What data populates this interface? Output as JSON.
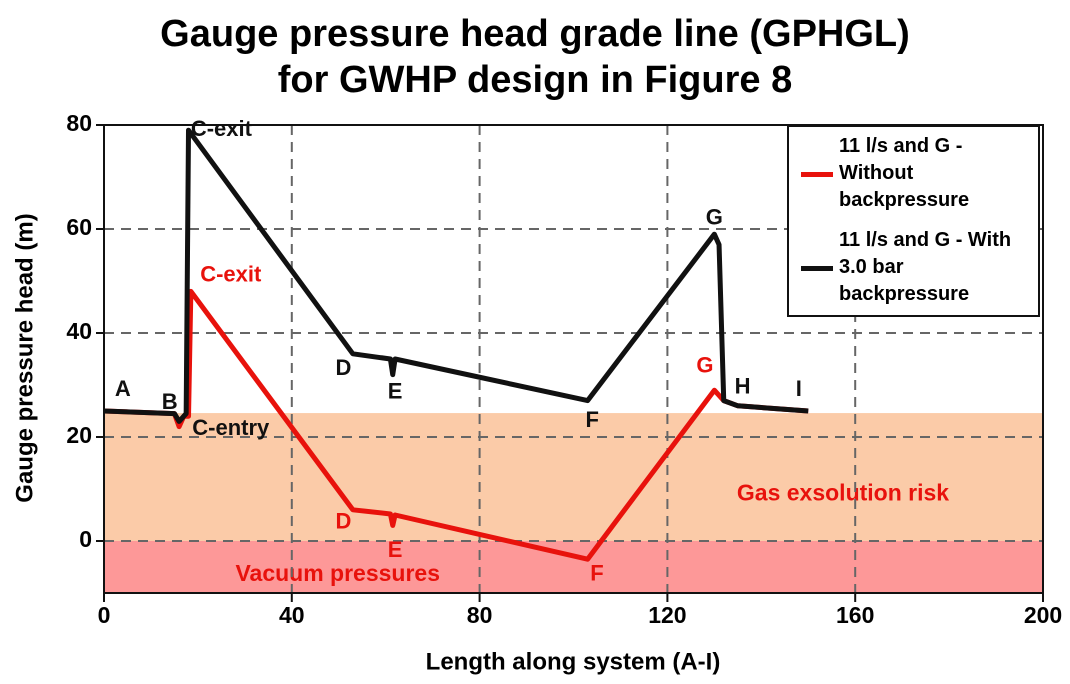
{
  "chart_data": {
    "type": "line",
    "title": [
      "Gauge pressure head grade line (GPHGL)",
      "for GWHP design in Figure 8"
    ],
    "xlabel": "Length along system (A-I)",
    "ylabel": "Gauge pressure head (m)",
    "xlim": [
      0,
      200
    ],
    "xticks": [
      0,
      40,
      80,
      120,
      160,
      200
    ],
    "ylim": [
      -10,
      80
    ],
    "yticks": [
      0,
      20,
      40,
      60,
      80
    ],
    "grid": true,
    "legend": "upper right",
    "bands": [
      {
        "from": 0,
        "to": 24.6,
        "color": "#fbcba8",
        "label": "Gas exsolution risk",
        "label_color": "#e8120c",
        "label_x": 180,
        "label_y": 9
      },
      {
        "from": -10,
        "to": 0,
        "color": "#fd9898",
        "label": "Vacuum pressures",
        "label_color": "#e8120c",
        "label_x": 28,
        "label_y": -6.5
      }
    ],
    "series": [
      {
        "name": "11 l/s and G - Without backpressure",
        "color": "#e8120c",
        "x": [
          0,
          15,
          16,
          17,
          18,
          18.5,
          53,
          61,
          61.5,
          62,
          103,
          130,
          132,
          135,
          150
        ],
        "values": [
          25,
          24.5,
          22,
          24,
          24,
          48,
          6,
          5.2,
          3,
          5,
          -3.5,
          29,
          27,
          26,
          25
        ]
      },
      {
        "name": "11 l/s and G - With 3.0 bar backpressure",
        "color": "#111111",
        "x": [
          0,
          15,
          16,
          17,
          17.5,
          18,
          53,
          61,
          61.5,
          62,
          103,
          130,
          131,
          132,
          135,
          150
        ],
        "values": [
          25,
          24.5,
          23,
          24,
          24.5,
          79,
          36,
          35,
          32,
          35,
          27,
          59,
          57,
          27,
          26,
          25
        ]
      }
    ],
    "annotations": [
      {
        "text": "A",
        "x": 4,
        "y": 29,
        "color": "#111111"
      },
      {
        "text": "B",
        "x": 14,
        "y": 26.5,
        "color": "#111111"
      },
      {
        "text": "C-entry",
        "x": 27,
        "y": 21.5,
        "color": "#111111"
      },
      {
        "text": "C-exit",
        "x": 25,
        "y": 79,
        "color": "#111111"
      },
      {
        "text": "D",
        "x": 51,
        "y": 33,
        "color": "#111111"
      },
      {
        "text": "E",
        "x": 62,
        "y": 28.5,
        "color": "#111111"
      },
      {
        "text": "F",
        "x": 104,
        "y": 23,
        "color": "#111111"
      },
      {
        "text": "G",
        "x": 130,
        "y": 62,
        "color": "#111111"
      },
      {
        "text": "H",
        "x": 136,
        "y": 29.5,
        "color": "#111111"
      },
      {
        "text": "I",
        "x": 148,
        "y": 29,
        "color": "#111111"
      },
      {
        "text": "C-exit",
        "x": 27,
        "y": 51,
        "color": "#e8120c"
      },
      {
        "text": "D",
        "x": 51,
        "y": 3.5,
        "color": "#e8120c"
      },
      {
        "text": "E",
        "x": 62,
        "y": -2,
        "color": "#e8120c"
      },
      {
        "text": "F",
        "x": 105,
        "y": -6.5,
        "color": "#e8120c"
      },
      {
        "text": "G",
        "x": 128,
        "y": 33.5,
        "color": "#e8120c"
      }
    ]
  }
}
